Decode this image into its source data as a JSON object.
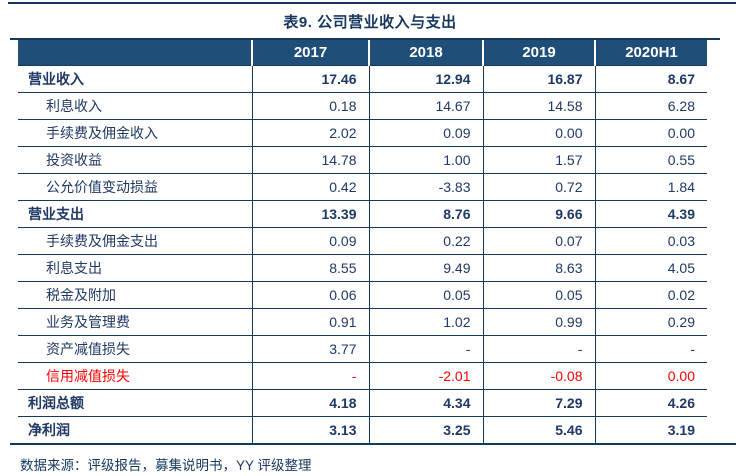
{
  "title": "表9. 公司营业收入与支出",
  "source_note": "数据来源：评级报告，募集说明书，YY 评级整理",
  "colors": {
    "header_bg": "#1F4E79",
    "text_navy": "#1F3864",
    "border_navy": "#17375E",
    "negative_red": "#FF0000",
    "header_text": "#FFFFFF"
  },
  "table": {
    "columns": [
      "",
      "2017",
      "2018",
      "2019",
      "2020H1"
    ],
    "rows": [
      {
        "label": "营业收入",
        "bold": true,
        "indent": false,
        "red": false,
        "values": [
          "17.46",
          "12.94",
          "16.87",
          "8.67"
        ]
      },
      {
        "label": "利息收入",
        "bold": false,
        "indent": true,
        "red": false,
        "values": [
          "0.18",
          "14.67",
          "14.58",
          "6.28"
        ]
      },
      {
        "label": "手续费及佣金收入",
        "bold": false,
        "indent": true,
        "red": false,
        "values": [
          "2.02",
          "0.09",
          "0.00",
          "0.00"
        ]
      },
      {
        "label": "投资收益",
        "bold": false,
        "indent": true,
        "red": false,
        "values": [
          "14.78",
          "1.00",
          "1.57",
          "0.55"
        ]
      },
      {
        "label": "公允价值变动损益",
        "bold": false,
        "indent": true,
        "red": false,
        "values": [
          "0.42",
          "-3.83",
          "0.72",
          "1.84"
        ]
      },
      {
        "label": "营业支出",
        "bold": true,
        "indent": false,
        "red": false,
        "values": [
          "13.39",
          "8.76",
          "9.66",
          "4.39"
        ]
      },
      {
        "label": "手续费及佣金支出",
        "bold": false,
        "indent": true,
        "red": false,
        "values": [
          "0.09",
          "0.22",
          "0.07",
          "0.03"
        ]
      },
      {
        "label": "利息支出",
        "bold": false,
        "indent": true,
        "red": false,
        "values": [
          "8.55",
          "9.49",
          "8.63",
          "4.05"
        ]
      },
      {
        "label": "税金及附加",
        "bold": false,
        "indent": true,
        "red": false,
        "values": [
          "0.06",
          "0.05",
          "0.05",
          "0.02"
        ]
      },
      {
        "label": "业务及管理费",
        "bold": false,
        "indent": true,
        "red": false,
        "values": [
          "0.91",
          "1.02",
          "0.99",
          "0.29"
        ]
      },
      {
        "label": "资产减值损失",
        "bold": false,
        "indent": true,
        "red": false,
        "values": [
          "3.77",
          "-",
          "-",
          "-"
        ]
      },
      {
        "label": "信用减值损失",
        "bold": false,
        "indent": true,
        "red": true,
        "values": [
          "-",
          "-2.01",
          "-0.08",
          "0.00"
        ]
      },
      {
        "label": "利润总额",
        "bold": true,
        "indent": false,
        "red": false,
        "values": [
          "4.18",
          "4.34",
          "7.29",
          "4.26"
        ]
      },
      {
        "label": "净利润",
        "bold": true,
        "indent": false,
        "red": false,
        "values": [
          "3.13",
          "3.25",
          "5.46",
          "3.19"
        ]
      }
    ]
  }
}
